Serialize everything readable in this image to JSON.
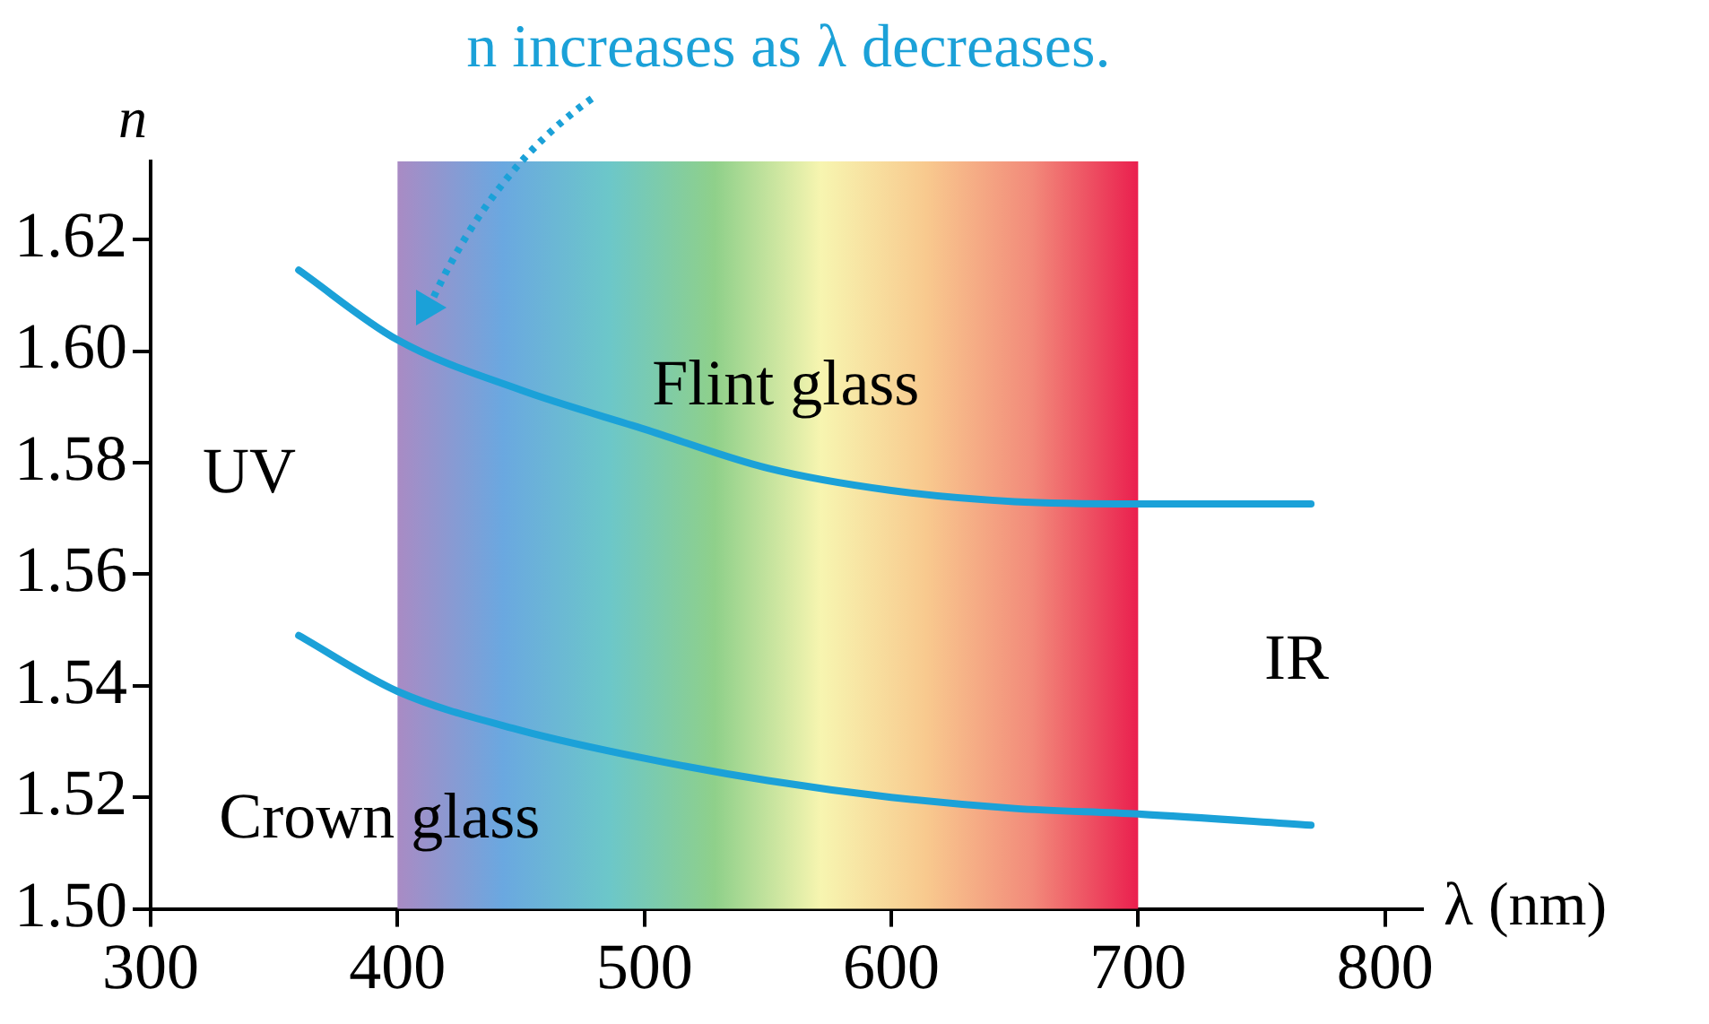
{
  "chart_data": {
    "type": "line",
    "xlabel": "λ (nm)",
    "ylabel": "n",
    "x": [
      360,
      400,
      450,
      500,
      550,
      600,
      650,
      700,
      770
    ],
    "series": [
      {
        "name": "Flint glass",
        "color": "#1ba1d8",
        "values": [
          1.6145,
          1.602,
          1.593,
          1.586,
          1.579,
          1.575,
          1.573,
          1.5726,
          1.5726
        ]
      },
      {
        "name": "Crown glass",
        "color": "#1ba1d8",
        "values": [
          1.549,
          1.539,
          1.532,
          1.527,
          1.523,
          1.52,
          1.518,
          1.517,
          1.515
        ]
      }
    ],
    "xlim": [
      300,
      815
    ],
    "xticks": [
      300,
      400,
      500,
      600,
      700,
      800
    ],
    "ylim": [
      1.5,
      1.634
    ],
    "yticks": [
      {
        "value": 1.5,
        "label": "1.50"
      },
      {
        "value": 1.52,
        "label": "1.52"
      },
      {
        "value": 1.54,
        "label": "1.54"
      },
      {
        "value": 1.56,
        "label": "1.56"
      },
      {
        "value": 1.58,
        "label": "1.58"
      },
      {
        "value": 1.6,
        "label": "1.60"
      },
      {
        "value": 1.62,
        "label": "1.62"
      }
    ],
    "bands": [
      {
        "axis": "x",
        "from": 400,
        "to": 700
      }
    ],
    "annotations": [
      "n increases as λ decreases.",
      "UV",
      "IR"
    ],
    "grid": false,
    "legend": false,
    "marker": "none",
    "line_style": "solid"
  }
}
